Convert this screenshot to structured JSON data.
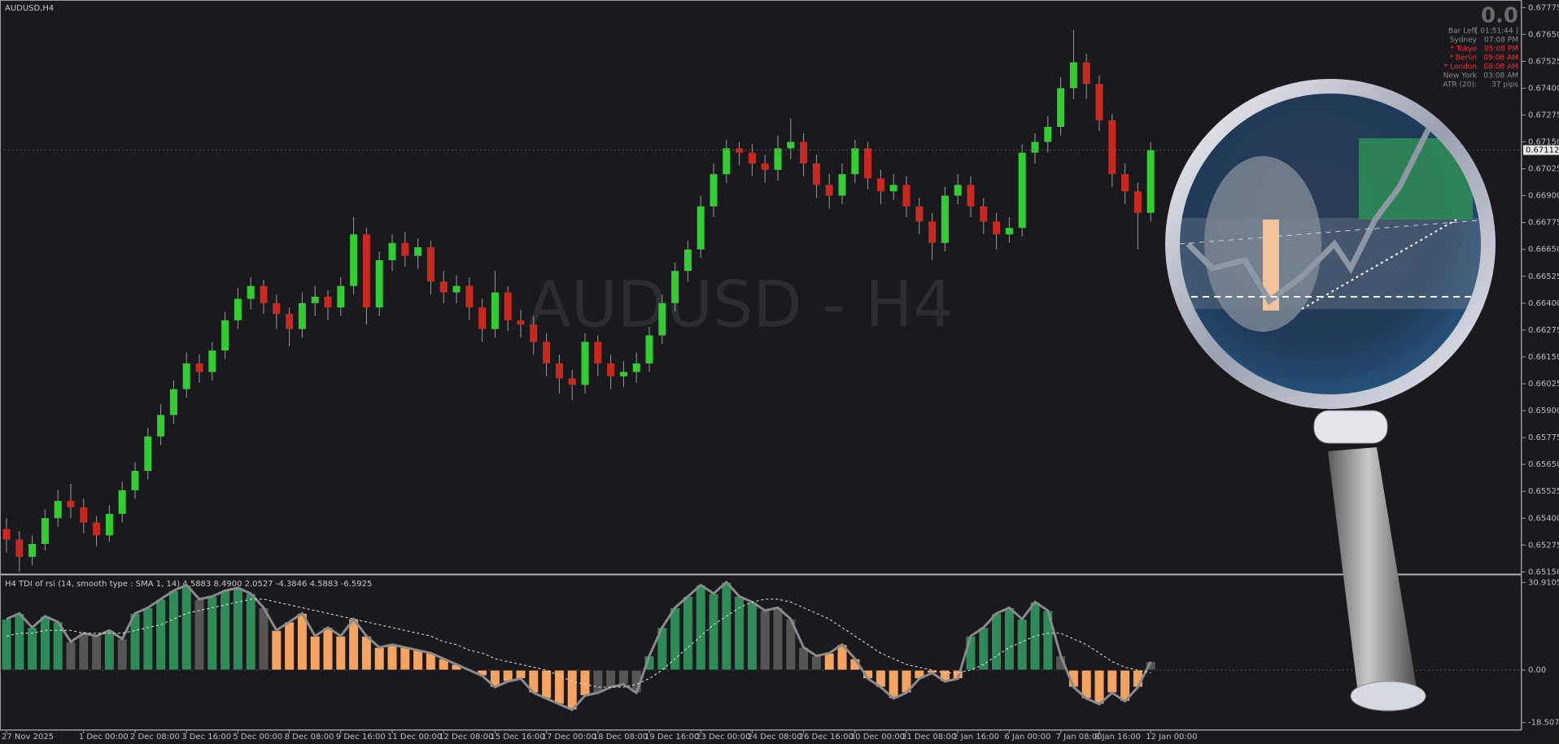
{
  "chart_data": [
    {
      "type": "candlestick",
      "title": "AUDUSD,H4",
      "watermark": "AUDUSD - H4",
      "categories": [
        "27 Nov 2025",
        null,
        null,
        null,
        null,
        null,
        "1 Dec 00:00",
        null,
        null,
        null,
        "2 Dec 08:00",
        null,
        null,
        null,
        "3 Dec 16:00",
        null,
        null,
        null,
        "5 Dec 00:00",
        null,
        null,
        null,
        "8 Dec 08:00",
        null,
        null,
        null,
        "9 Dec 16:00",
        null,
        null,
        null,
        "11 Dec 00:00",
        null,
        null,
        null,
        "12 Dec 08:00",
        null,
        null,
        null,
        "15 Dec 16:00",
        null,
        null,
        null,
        "17 Dec 00:00",
        null,
        null,
        null,
        "18 Dec 08:00",
        null,
        null,
        null,
        "19 Dec 16:00",
        null,
        null,
        null,
        "23 Dec 00:00",
        null,
        null,
        null,
        "24 Dec 08:00",
        null,
        null,
        null,
        "26 Dec 16:00",
        null,
        null,
        null,
        "30 Dec 00:00",
        null,
        null,
        null,
        "31 Dec 08:00",
        null,
        null,
        null,
        "2 Jan 16:00",
        null,
        null,
        null,
        "6 Jan 00:00",
        null,
        null,
        null,
        "7 Jan 08:00",
        null,
        null,
        "8 Jan 16:00",
        null,
        null,
        null,
        "12 Jan 00:00"
      ],
      "open": [
        0.6535,
        0.653,
        0.6522,
        0.6528,
        0.654,
        0.6548,
        0.6545,
        0.6538,
        0.6532,
        0.6542,
        0.6553,
        0.6562,
        0.6578,
        0.6588,
        0.66,
        0.6612,
        0.6608,
        0.6618,
        0.6632,
        0.6642,
        0.6648,
        0.664,
        0.6635,
        0.6628,
        0.664,
        0.6643,
        0.6638,
        0.6648,
        0.6672,
        0.6638,
        0.666,
        0.6668,
        0.6662,
        0.6666,
        0.665,
        0.6645,
        0.6648,
        0.6638,
        0.6628,
        0.6645,
        0.6632,
        0.663,
        0.6622,
        0.6612,
        0.6605,
        0.6602,
        0.6622,
        0.6612,
        0.6606,
        0.6608,
        0.6612,
        0.6625,
        0.664,
        0.6655,
        0.6665,
        0.6685,
        0.67,
        0.6712,
        0.671,
        0.6705,
        0.6702,
        0.6712,
        0.6715,
        0.6705,
        0.6695,
        0.669,
        0.67,
        0.6712,
        0.6698,
        0.6692,
        0.6695,
        0.6685,
        0.6678,
        0.6668,
        0.669,
        0.6695,
        0.6685,
        0.6678,
        0.6672,
        0.6675,
        0.671,
        0.6715,
        0.6722,
        0.674,
        0.6752,
        0.6742,
        0.6725,
        0.67,
        0.6692,
        0.6682
      ],
      "high": [
        0.654,
        0.6534,
        0.6532,
        0.6544,
        0.6553,
        0.6556,
        0.6549,
        0.6541,
        0.6546,
        0.6557,
        0.6566,
        0.6582,
        0.6593,
        0.6604,
        0.6617,
        0.6616,
        0.6622,
        0.6636,
        0.6647,
        0.6652,
        0.6651,
        0.6644,
        0.6638,
        0.6645,
        0.6648,
        0.6646,
        0.6652,
        0.668,
        0.6675,
        0.6664,
        0.6672,
        0.6673,
        0.667,
        0.6669,
        0.6655,
        0.6653,
        0.6652,
        0.6642,
        0.6655,
        0.6648,
        0.6637,
        0.6634,
        0.6626,
        0.6616,
        0.6609,
        0.6626,
        0.6625,
        0.6616,
        0.6613,
        0.6617,
        0.6629,
        0.6644,
        0.6659,
        0.6669,
        0.669,
        0.6705,
        0.6716,
        0.6715,
        0.6714,
        0.6709,
        0.6718,
        0.6726,
        0.6719,
        0.6709,
        0.67,
        0.6705,
        0.6716,
        0.6715,
        0.6702,
        0.67,
        0.6699,
        0.6689,
        0.6682,
        0.6694,
        0.67,
        0.6699,
        0.6689,
        0.6682,
        0.668,
        0.6714,
        0.6719,
        0.6727,
        0.6745,
        0.6767,
        0.6756,
        0.6746,
        0.6728,
        0.6705,
        0.6696,
        0.6715
      ],
      "low": [
        0.6524,
        0.6515,
        0.6518,
        0.6525,
        0.6536,
        0.654,
        0.6533,
        0.6527,
        0.6529,
        0.6538,
        0.6549,
        0.6558,
        0.6574,
        0.6584,
        0.6596,
        0.6603,
        0.6604,
        0.6614,
        0.6628,
        0.6637,
        0.6635,
        0.6628,
        0.662,
        0.6624,
        0.6634,
        0.6632,
        0.6634,
        0.6644,
        0.663,
        0.6634,
        0.6655,
        0.6657,
        0.6656,
        0.6644,
        0.664,
        0.664,
        0.6632,
        0.6622,
        0.6624,
        0.6627,
        0.6624,
        0.6616,
        0.6606,
        0.6598,
        0.6595,
        0.6598,
        0.6606,
        0.66,
        0.6601,
        0.6603,
        0.6608,
        0.6621,
        0.6636,
        0.665,
        0.6661,
        0.668,
        0.6696,
        0.6704,
        0.6699,
        0.6696,
        0.6697,
        0.6707,
        0.6699,
        0.6689,
        0.6684,
        0.6686,
        0.6696,
        0.6693,
        0.6686,
        0.6688,
        0.668,
        0.6672,
        0.666,
        0.6664,
        0.6686,
        0.668,
        0.6672,
        0.6665,
        0.6668,
        0.6671,
        0.6705,
        0.671,
        0.6718,
        0.6735,
        0.6735,
        0.672,
        0.6694,
        0.6686,
        0.6665,
        0.6678
      ],
      "close": [
        0.653,
        0.6522,
        0.6528,
        0.654,
        0.6548,
        0.6545,
        0.6538,
        0.6532,
        0.6542,
        0.6553,
        0.6562,
        0.6578,
        0.6588,
        0.66,
        0.6612,
        0.6608,
        0.6618,
        0.6632,
        0.6642,
        0.6648,
        0.664,
        0.6635,
        0.6628,
        0.664,
        0.6643,
        0.6638,
        0.6648,
        0.6672,
        0.6638,
        0.666,
        0.6668,
        0.6662,
        0.6666,
        0.665,
        0.6645,
        0.6648,
        0.6638,
        0.6628,
        0.6645,
        0.6632,
        0.663,
        0.6622,
        0.6612,
        0.6605,
        0.6602,
        0.6622,
        0.6612,
        0.6606,
        0.6608,
        0.6612,
        0.6625,
        0.664,
        0.6655,
        0.6665,
        0.6685,
        0.67,
        0.6712,
        0.671,
        0.6705,
        0.6702,
        0.6712,
        0.6715,
        0.6705,
        0.6695,
        0.669,
        0.67,
        0.6712,
        0.6698,
        0.6692,
        0.6695,
        0.6685,
        0.6678,
        0.6668,
        0.669,
        0.6695,
        0.6685,
        0.6678,
        0.6672,
        0.6675,
        0.671,
        0.6715,
        0.6722,
        0.674,
        0.6752,
        0.6742,
        0.6725,
        0.67,
        0.6692,
        0.6682,
        0.67112
      ],
      "last_price_label": "0.67112",
      "up_color": "#32cd32",
      "down_color": "#c8281e",
      "wick_color": "#9a9a9a",
      "ylim": [
        0.6514,
        0.6781
      ],
      "yticks": [
        {
          "value": 0.67775,
          "label": "0.67775"
        },
        {
          "value": 0.6765,
          "label": "0.67650"
        },
        {
          "value": 0.67525,
          "label": "0.67525"
        },
        {
          "value": 0.674,
          "label": "0.67400"
        },
        {
          "value": 0.67275,
          "label": "0.67275"
        },
        {
          "value": 0.6715,
          "label": "0.67150"
        },
        {
          "value": 0.67025,
          "label": "0.67025"
        },
        {
          "value": 0.669,
          "label": "0.66900"
        },
        {
          "value": 0.66775,
          "label": "0.66775"
        },
        {
          "value": 0.6665,
          "label": "0.66650"
        },
        {
          "value": 0.66525,
          "label": "0.66525"
        },
        {
          "value": 0.664,
          "label": "0.66400"
        },
        {
          "value": 0.66275,
          "label": "0.66275"
        },
        {
          "value": 0.6615,
          "label": "0.66150"
        },
        {
          "value": 0.66025,
          "label": "0.66025"
        },
        {
          "value": 0.659,
          "label": "0.65900"
        },
        {
          "value": 0.65775,
          "label": "0.65775"
        },
        {
          "value": 0.6565,
          "label": "0.65650"
        },
        {
          "value": 0.65525,
          "label": "0.65525"
        },
        {
          "value": 0.654,
          "label": "0.65400"
        },
        {
          "value": 0.65275,
          "label": "0.65275"
        },
        {
          "value": 0.6515,
          "label": "0.65150"
        }
      ]
    },
    {
      "type": "histogram",
      "title": "H4 TDI of rsi  (14, smooth type :  SMA 1, 14) 4.5883 8.4900 2.0527 -4.3846 4.5883 -6.5925",
      "values": [
        18,
        20,
        15,
        19,
        17,
        10,
        13,
        12,
        14,
        11,
        20,
        22,
        25,
        28,
        30,
        25,
        26,
        28,
        29,
        27,
        22,
        14,
        17,
        20,
        12,
        15,
        12,
        18,
        12,
        8,
        9,
        8,
        7,
        6,
        4,
        2,
        0,
        -2,
        -6,
        -4,
        -3,
        -8,
        -10,
        -12,
        -14,
        -9,
        -8,
        -6,
        -5,
        -8,
        5,
        15,
        22,
        26,
        30,
        27,
        31,
        26,
        24,
        21,
        22,
        18,
        8,
        5,
        6,
        9,
        4,
        -3,
        -6,
        -10,
        -8,
        -3,
        -1,
        -4,
        -3,
        12,
        15,
        20,
        22,
        18,
        24,
        21,
        5,
        -6,
        -10,
        -12,
        -8,
        -11,
        -6,
        3
      ],
      "colors": [
        "#2e8b57",
        "#2e8b57",
        "#2e8b57",
        "#2e8b57",
        "#2e8b57",
        "#555555",
        "#555555",
        "#555555",
        "#2e8b57",
        "#555555",
        "#2e8b57",
        "#2e8b57",
        "#2e8b57",
        "#2e8b57",
        "#2e8b57",
        "#555555",
        "#2e8b57",
        "#2e8b57",
        "#2e8b57",
        "#2e8b57",
        "#555555",
        "#f4a460",
        "#f4a460",
        "#f4a460",
        "#f4a460",
        "#f4a460",
        "#f4a460",
        "#f4a460",
        "#f4a460",
        "#f4a460",
        "#f4a460",
        "#f4a460",
        "#f4a460",
        "#f4a460",
        "#f4a460",
        "#f4a460",
        "#f4a460",
        "#f4a460",
        "#f4a460",
        "#f4a460",
        "#f4a460",
        "#f4a460",
        "#f4a460",
        "#f4a460",
        "#f4a460",
        "#f4a460",
        "#555555",
        "#555555",
        "#555555",
        "#555555",
        "#2e8b57",
        "#2e8b57",
        "#2e8b57",
        "#2e8b57",
        "#2e8b57",
        "#2e8b57",
        "#2e8b57",
        "#2e8b57",
        "#2e8b57",
        "#555555",
        "#555555",
        "#555555",
        "#555555",
        "#555555",
        "#f4a460",
        "#f4a460",
        "#f4a460",
        "#f4a460",
        "#f4a460",
        "#f4a460",
        "#f4a460",
        "#f4a460",
        "#f4a460",
        "#f4a460",
        "#f4a460",
        "#2e8b57",
        "#2e8b57",
        "#2e8b57",
        "#2e8b57",
        "#2e8b57",
        "#2e8b57",
        "#2e8b57",
        "#555555",
        "#f4a460",
        "#f4a460",
        "#f4a460",
        "#f4a460",
        "#f4a460",
        "#f4a460",
        "#555555"
      ],
      "signal": [
        12,
        13,
        13,
        14,
        14,
        14,
        13,
        13,
        13,
        13,
        14,
        15,
        16,
        18,
        20,
        21,
        22,
        23,
        24,
        25,
        25,
        24,
        23,
        22,
        21,
        20,
        19,
        18,
        17,
        16,
        15,
        14,
        13,
        12,
        10,
        9,
        7,
        6,
        4,
        3,
        2,
        1,
        0,
        -2,
        -4,
        -5,
        -6,
        -6,
        -6,
        -5,
        -3,
        0,
        4,
        8,
        12,
        16,
        19,
        22,
        24,
        25,
        25,
        24,
        22,
        20,
        18,
        15,
        12,
        9,
        6,
        4,
        2,
        1,
        0,
        -1,
        -1,
        0,
        2,
        5,
        8,
        10,
        12,
        13,
        13,
        11,
        9,
        6,
        3,
        1,
        0,
        -1
      ],
      "line_color": "#8a8a8a",
      "signal_color": "#e8e8e8",
      "ylim": [
        -20.61,
        33.01
      ],
      "yticks": [
        30.9105,
        {
          "value": 0,
          "label": "0.00"
        },
        -18.5072
      ]
    }
  ],
  "info_panel": {
    "spread": "0.0",
    "rows": [
      {
        "label": "Bar Left",
        "value": "[ 01:51:44 ]",
        "color": "#8c8c8c"
      },
      {
        "label": "Sydney",
        "value": "07:08 PM",
        "color": "#8c8c8c"
      },
      {
        "label": "* Tokyo",
        "value": "05:08 PM",
        "color": "#ff2a2a"
      },
      {
        "label": "* Berlin",
        "value": "09:08 AM",
        "color": "#ff2a2a"
      },
      {
        "label": "* London",
        "value": "08:08 AM",
        "color": "#ff2a2a"
      },
      {
        "label": "New York",
        "value": "03:08 AM",
        "color": "#8c8c8c"
      },
      {
        "label": "ATR (20):",
        "value": "37 pips",
        "color": "#8c8c8c"
      }
    ]
  }
}
